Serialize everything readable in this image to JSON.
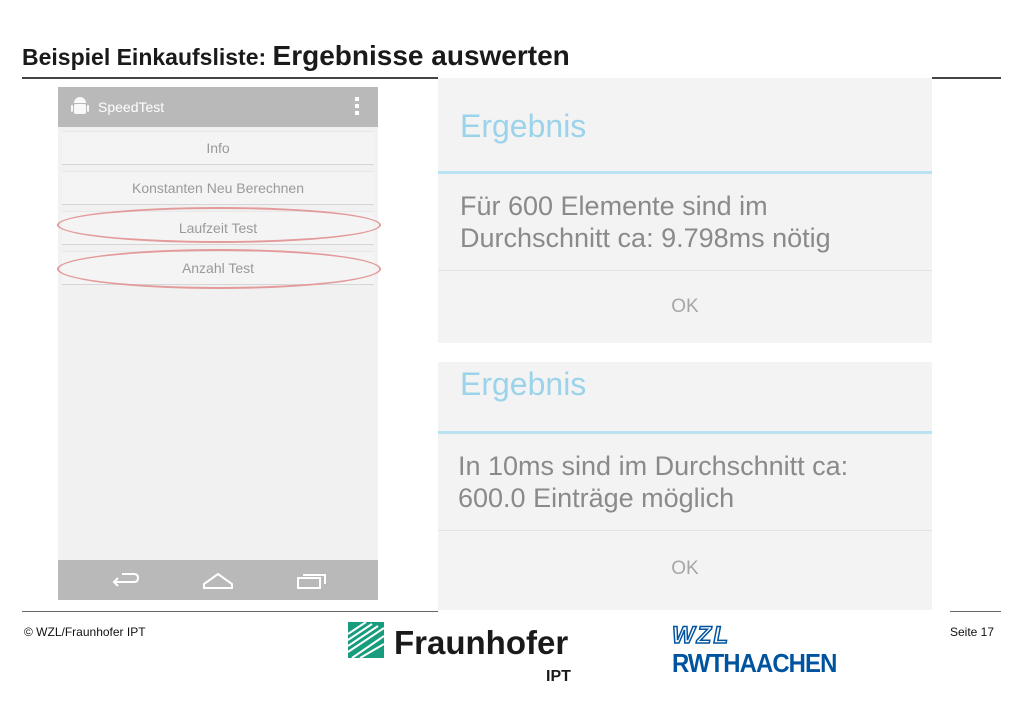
{
  "slide": {
    "title_part1": "Beispiel Einkaufsliste: ",
    "title_part2": "Ergebnisse auswerten"
  },
  "phone": {
    "app_title": "SpeedTest",
    "buttons": [
      "Info",
      "Konstanten Neu Berechnen",
      "Laufzeit Test",
      "Anzahl Test"
    ],
    "highlight_color": "#e39a9a"
  },
  "dialog1": {
    "title": "Ergebnis",
    "message_line1": "Für 600 Elemente sind im",
    "message_line2": "Durchschnitt ca: 9.798ms nötig",
    "ok": "OK"
  },
  "dialog2": {
    "title": "Ergebnis",
    "message_line1": "In 10ms sind im Durchschnitt ca:",
    "message_line2": "600.0 Einträge möglich",
    "ok": "OK"
  },
  "footer": {
    "copyright": "© WZL/Fraunhofer IPT",
    "fraunhofer": "Fraunhofer",
    "ipt": "IPT",
    "wzl": "WZL",
    "rwth": "RWTHAACHEN",
    "page": "Seite 17"
  },
  "colors": {
    "accent_blue": "#9bd3ea",
    "fraunhofer_green": "#179c7d",
    "rwth_blue": "#00549f"
  }
}
